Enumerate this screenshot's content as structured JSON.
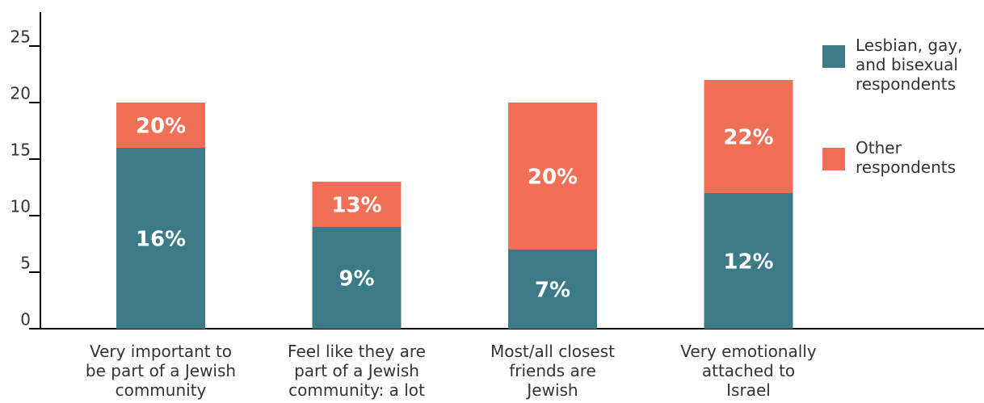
{
  "chart_data": {
    "type": "bar",
    "categories": [
      "Very important to\nbe part of a Jewish\ncommunity",
      "Feel like they are\npart of a Jewish\ncommunity: a lot",
      "Most/all closest\nfriends are\nJewish",
      "Very emotionally\nattached to\nIsrael"
    ],
    "series": [
      {
        "name": "Other\nrespondents",
        "color": "#f07057",
        "values": [
          20,
          13,
          20,
          22
        ],
        "value_labels": [
          "20%",
          "13%",
          "20%",
          "22%"
        ]
      },
      {
        "name": "Lesbian, gay,\nand bisexual\nrespondents",
        "color": "#3a7b87",
        "values": [
          16,
          9,
          7,
          12
        ],
        "value_labels": [
          "16%",
          "9%",
          "7%",
          "12%"
        ]
      }
    ],
    "ylim": [
      0,
      28
    ],
    "yticks": [
      0,
      5,
      10,
      15,
      20,
      25
    ]
  }
}
